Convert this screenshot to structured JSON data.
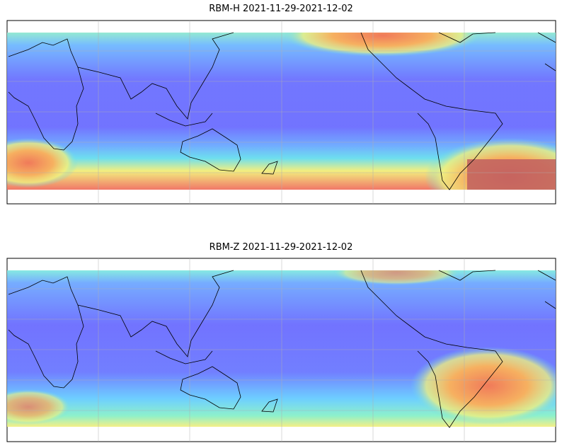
{
  "panels": [
    {
      "title": "RBM-H 2021-11-29-2021-12-02"
    },
    {
      "title": "RBM-Z 2021-11-29-2021-12-02"
    }
  ]
}
